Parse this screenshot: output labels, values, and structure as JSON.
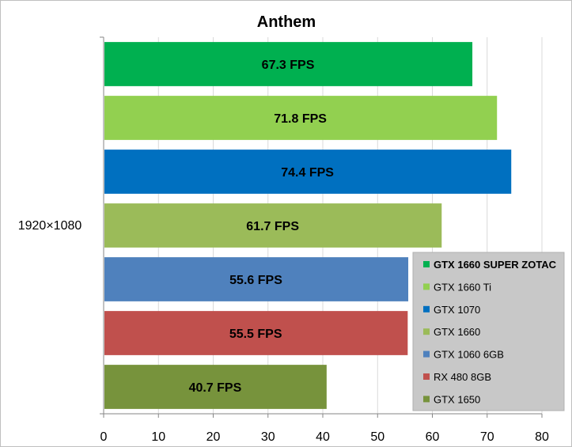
{
  "chart_data": {
    "type": "bar",
    "orientation": "horizontal",
    "title": "Anthem",
    "categories": [
      "1920×1080"
    ],
    "xlim": [
      0,
      80
    ],
    "x_ticks": [
      0,
      10,
      20,
      30,
      40,
      50,
      60,
      70,
      80
    ],
    "grid": true,
    "legend_position": "right",
    "series": [
      {
        "name": "GTX 1660 SUPER ZOTAC",
        "values": [
          67.3
        ],
        "label": "67.3 FPS",
        "color": "#00b050",
        "bold": true
      },
      {
        "name": "GTX 1660 Ti",
        "values": [
          71.8
        ],
        "label": "71.8 FPS",
        "color": "#92d050"
      },
      {
        "name": "GTX 1070",
        "values": [
          74.4
        ],
        "label": "74.4 FPS",
        "color": "#0070c0"
      },
      {
        "name": "GTX 1660",
        "values": [
          61.7
        ],
        "label": "61.7 FPS",
        "color": "#9bbb59"
      },
      {
        "name": "GTX 1060 6GB",
        "values": [
          55.6
        ],
        "label": "55.6 FPS",
        "color": "#4f81bd"
      },
      {
        "name": "RX 480 8GB",
        "values": [
          55.5
        ],
        "label": "55.5 FPS",
        "color": "#c0504d"
      },
      {
        "name": "GTX 1650",
        "values": [
          40.7
        ],
        "label": "40.7 FPS",
        "color": "#77933c"
      }
    ]
  }
}
